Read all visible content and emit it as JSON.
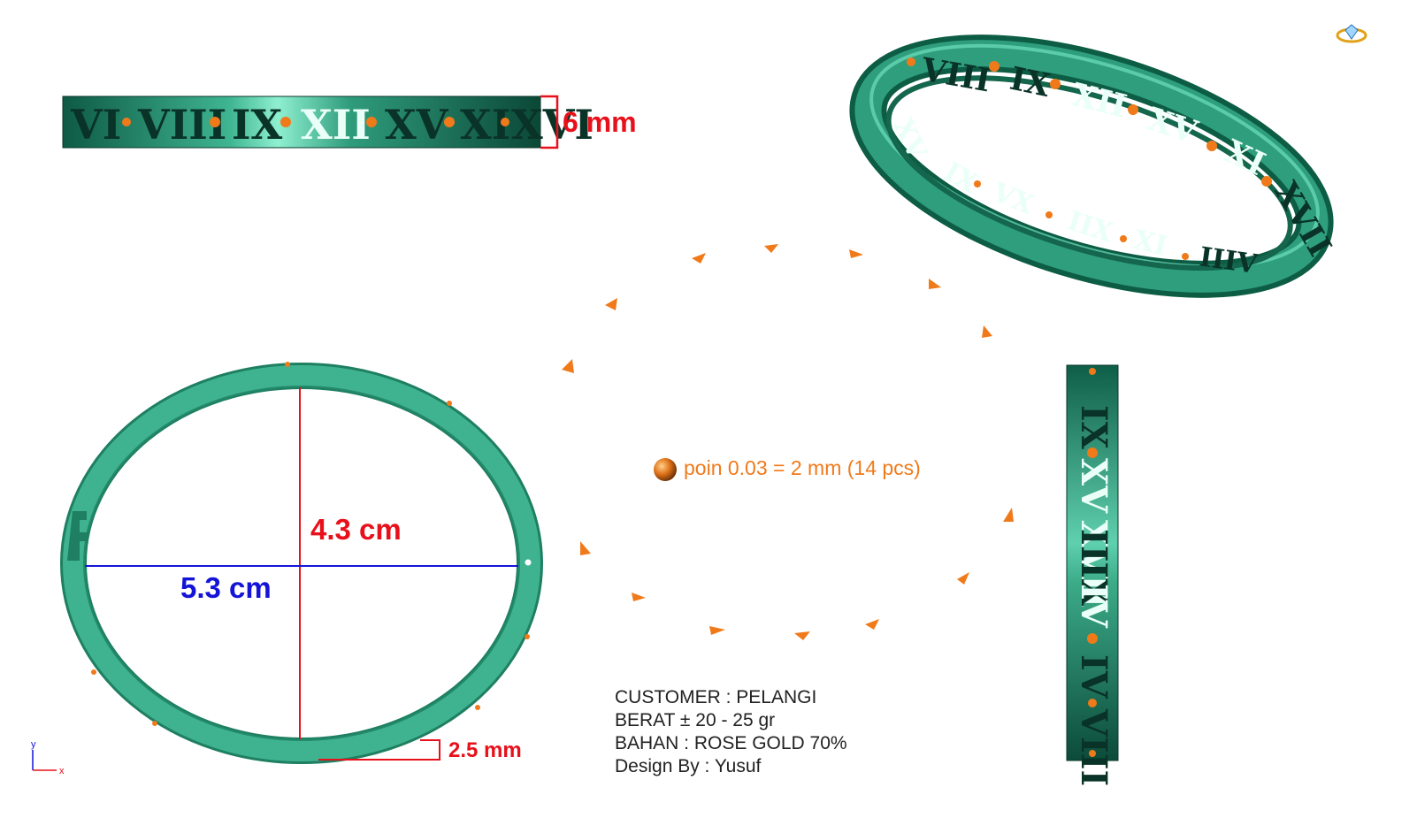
{
  "dimensions": {
    "width_label": "6 mm",
    "height_label": "4.3 cm",
    "length_label": "5.3 cm",
    "thickness_label": "2.5 mm"
  },
  "stone_note": "poin 0.03 = 2 mm (14 pcs)",
  "spec": {
    "customer": "CUSTOMER : PELANGI",
    "weight": "BERAT ± 20 - 25 gr",
    "material": "BAHAN : ROSE GOLD 70%",
    "designer": "Design By : Yusuf"
  },
  "axis": {
    "y": "y",
    "x": "x"
  },
  "numerals": {
    "top_view": [
      "VI",
      "VIII",
      "IX",
      "XII",
      "XV",
      "XI",
      "XVI"
    ],
    "perspective_outer": [
      "VIII",
      "IX",
      "XII",
      "XV",
      "XI",
      "XVII"
    ],
    "perspective_inner": [
      "XV",
      "IX",
      "VX",
      "IIX",
      "XI",
      "IIIV"
    ],
    "side_view": [
      "IX",
      "XV",
      "XVII",
      "IIIX",
      "IV",
      "IV",
      "VIII"
    ]
  },
  "colors": {
    "band": "#2a9a78",
    "band_light": "#63d6b4",
    "band_dark": "#0d5c44",
    "stone": "#f07a1a",
    "dim_red": "#e8101a",
    "dim_blue": "#1414d8"
  },
  "icons": {
    "logo": "diamond-ring-icon",
    "gem": "gem-sphere-icon"
  }
}
